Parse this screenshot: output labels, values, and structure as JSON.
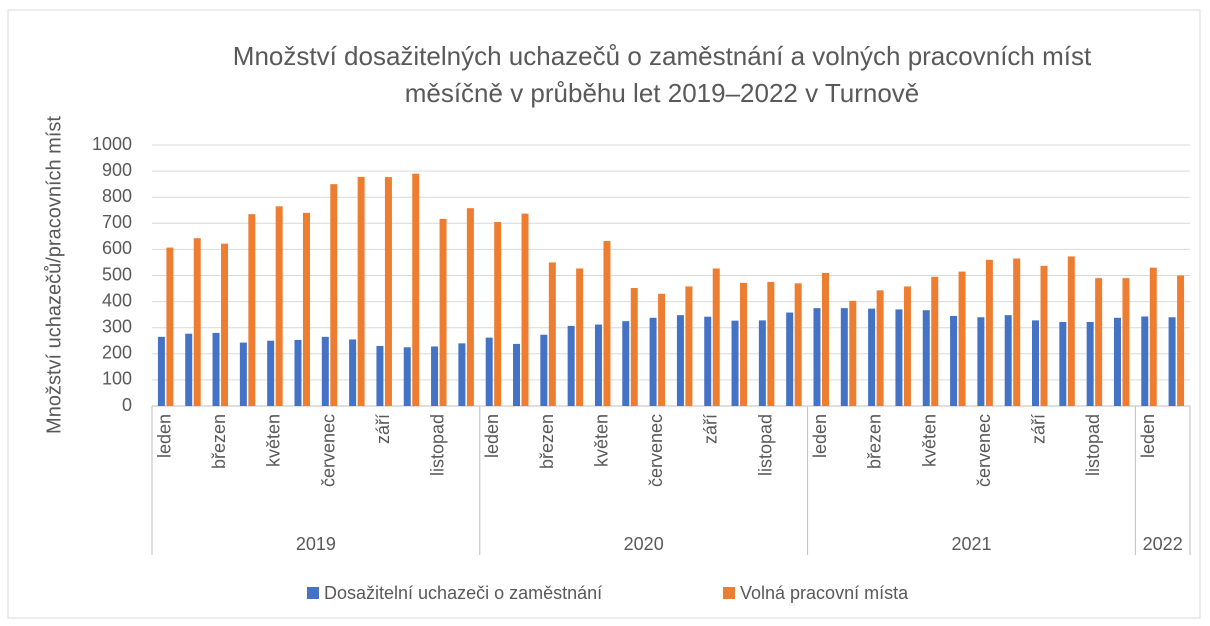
{
  "chart_data": {
    "type": "bar",
    "title": [
      "Množství dosažitelných uchazečů o zaměstnání a volných pracovních míst",
      "měsíčně v průběhu let 2019–2022 v Turnově"
    ],
    "y_label": "Množství uchazečů/pracovních míst",
    "categories": [
      "leden",
      null,
      "březen",
      null,
      "květen",
      null,
      "červenec",
      null,
      "září",
      null,
      "listopad",
      null,
      "leden",
      null,
      "březen",
      null,
      "květen",
      null,
      "červenec",
      null,
      "září",
      null,
      "listopad",
      null,
      "leden",
      null,
      "březen",
      null,
      "květen",
      null,
      "červenec",
      null,
      "září",
      null,
      "listopad",
      null,
      "leden",
      null
    ],
    "groups": [
      "2019",
      "2020",
      "2021",
      "2022"
    ],
    "group_sizes": [
      12,
      12,
      12,
      2
    ],
    "series": [
      {
        "name": "Dosažitelní uchazeči o zaměstnání",
        "color": "#4472c4",
        "values": [
          265,
          277,
          280,
          243,
          250,
          253,
          265,
          255,
          230,
          225,
          228,
          240,
          262,
          238,
          273,
          307,
          312,
          325,
          338,
          348,
          342,
          327,
          328,
          358,
          375,
          375,
          373,
          370,
          367,
          345,
          340,
          348,
          328,
          322,
          322,
          338,
          343,
          340
        ]
      },
      {
        "name": "Volná pracovní místa",
        "color": "#ed7d31",
        "values": [
          607,
          643,
          622,
          735,
          765,
          740,
          850,
          878,
          877,
          890,
          717,
          758,
          705,
          737,
          550,
          527,
          632,
          452,
          430,
          458,
          527,
          472,
          475,
          470,
          510,
          403,
          443,
          458,
          495,
          515,
          560,
          565,
          537,
          573,
          490,
          490,
          530,
          500
        ]
      }
    ],
    "ylim": [
      0,
      1000
    ],
    "yticks": [
      0,
      100,
      200,
      300,
      400,
      500,
      600,
      700,
      800,
      900,
      1000
    ],
    "grid": true,
    "legend": "bottom"
  }
}
